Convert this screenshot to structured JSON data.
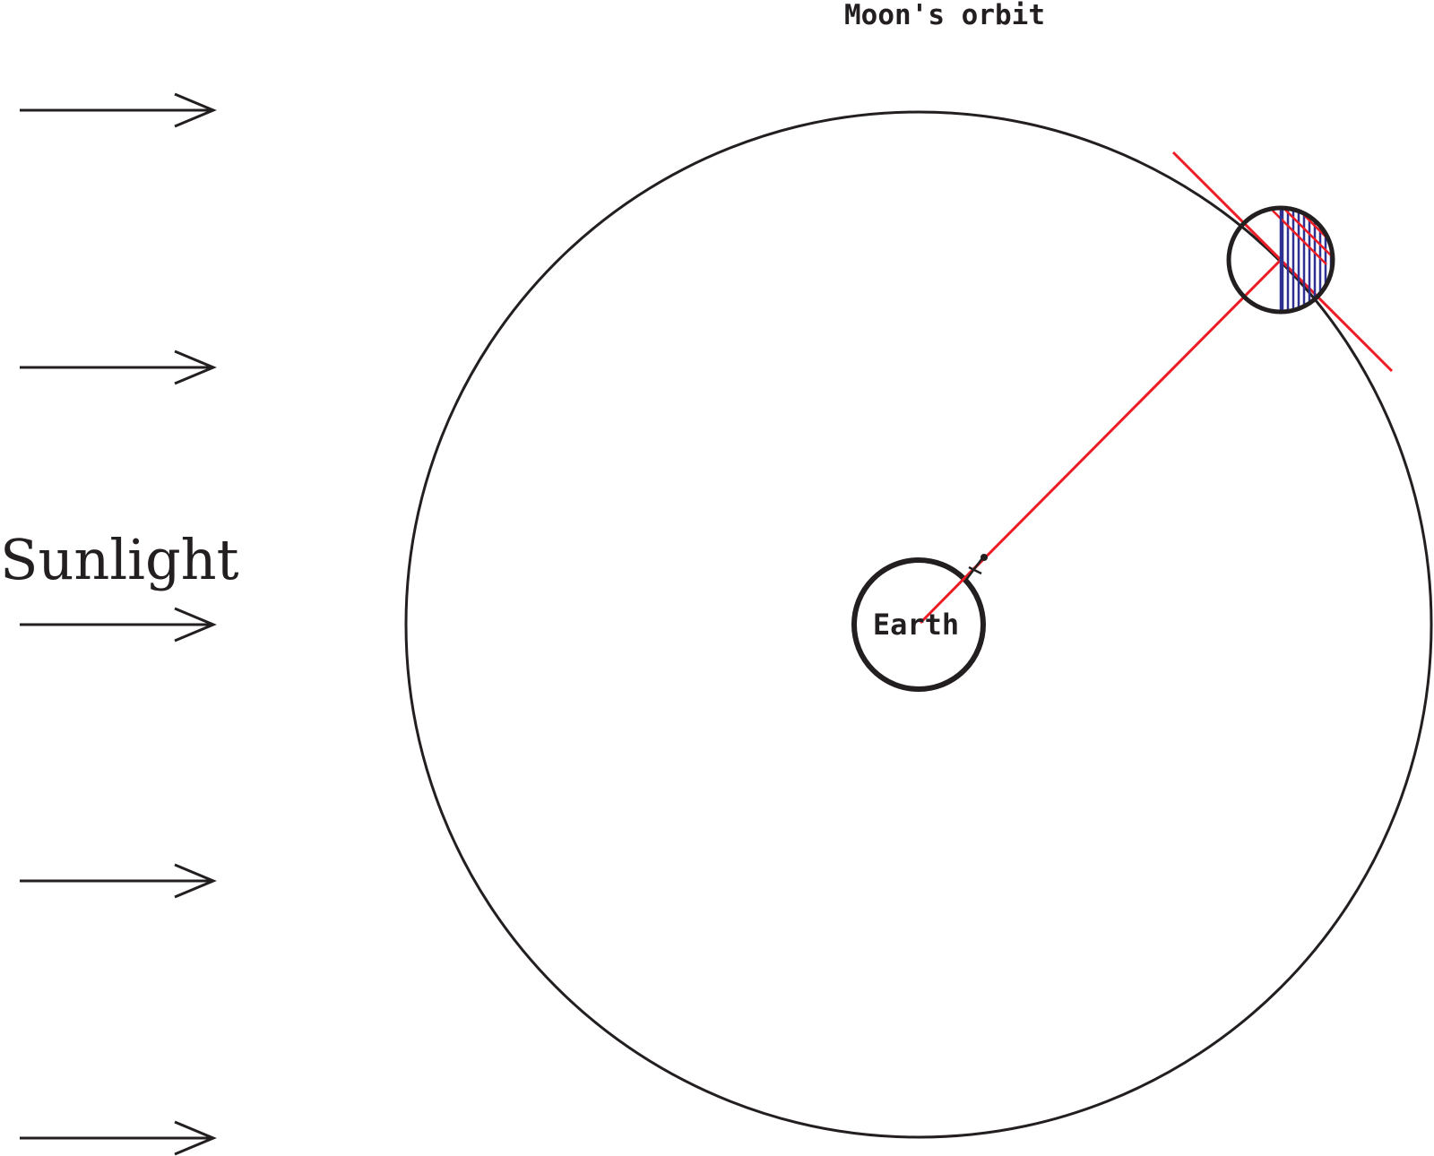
{
  "labels": {
    "orbit_title": "Moon's orbit",
    "sunlight": "Sunlight",
    "earth": "Earth"
  },
  "colors": {
    "ink": "#231f20",
    "sight_line": "#ed1c24",
    "lit_hatch": "#2e3192"
  }
}
